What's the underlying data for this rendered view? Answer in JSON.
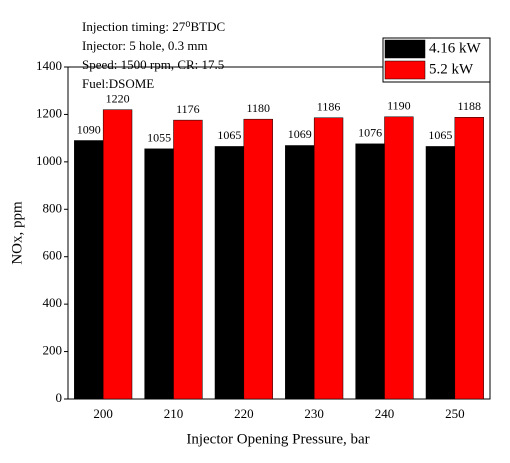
{
  "chart_data": {
    "type": "bar",
    "annotations": [
      "Injection timing: 27⁰BTDC",
      "Injector: 5 hole, 0.3 mm",
      "Speed: 1500 rpm, CR: 17.5",
      "Fuel:DSOME"
    ],
    "xlabel": "Injector Opening Pressure, bar",
    "ylabel": "NOx, ppm",
    "categories": [
      "200",
      "210",
      "220",
      "230",
      "240",
      "250"
    ],
    "series": [
      {
        "name": "4.16 kW",
        "color": "#000000",
        "values": [
          1090,
          1055,
          1065,
          1069,
          1076,
          1065
        ]
      },
      {
        "name": "5.2 kW",
        "color": "#ff0000",
        "values": [
          1220,
          1176,
          1180,
          1186,
          1190,
          1188
        ]
      }
    ],
    "ylim": [
      0,
      1400
    ],
    "yticks": [
      0,
      200,
      400,
      600,
      800,
      1000,
      1200,
      1400
    ],
    "legend": "upper right"
  }
}
